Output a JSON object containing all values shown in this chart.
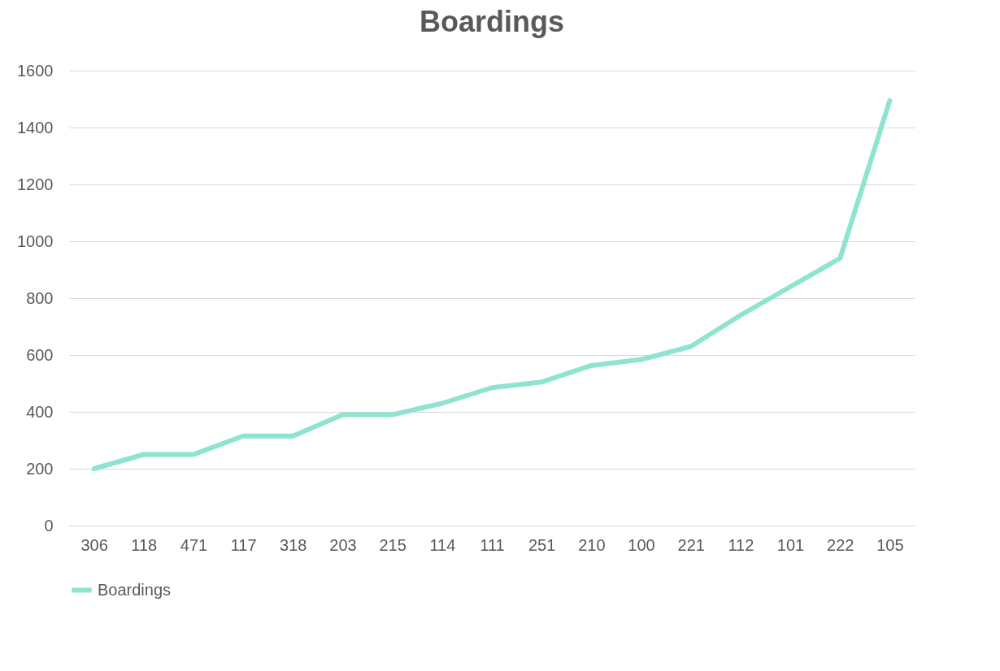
{
  "chart_data": {
    "type": "line",
    "title": "Boardings",
    "categories": [
      "306",
      "118",
      "471",
      "117",
      "318",
      "203",
      "215",
      "114",
      "111",
      "251",
      "210",
      "100",
      "221",
      "112",
      "101",
      "222",
      "105"
    ],
    "series": [
      {
        "name": "Boardings",
        "color": "#8ee4cf",
        "values": [
          200,
          250,
          250,
          315,
          315,
          390,
          390,
          430,
          485,
          505,
          563,
          584,
          630,
          740,
          840,
          940,
          1495
        ]
      }
    ],
    "ylim": [
      0,
      1600
    ],
    "yticks": [
      0,
      200,
      400,
      600,
      800,
      1000,
      1200,
      1400,
      1600
    ],
    "grid": "y",
    "legend": "bottom",
    "line_style": "solid",
    "marker": "none"
  }
}
